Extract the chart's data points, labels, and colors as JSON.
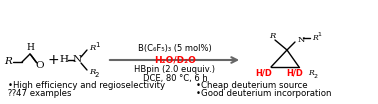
{
  "bg_color": "#ffffff",
  "black": "#000000",
  "red": "#ff0000",
  "gray": "#666666",
  "catalyst": "B(C₆F₅)₃ (5 mol%)",
  "water": "H₂O/D₂O",
  "cond1": "HBpin (2.0 euquiv.)",
  "cond2": "DCE, 80 °C, 6 h",
  "b1l": "•High efficiency and regioselectivity",
  "b2l": "⁇47 examples",
  "b1r": "•Cheap deuterium source",
  "b2r": "•Good deuterium incorporation",
  "fs": 6.5,
  "fs_struct": 7.5,
  "fs_small": 5.0,
  "fs_bullet": 6.2
}
